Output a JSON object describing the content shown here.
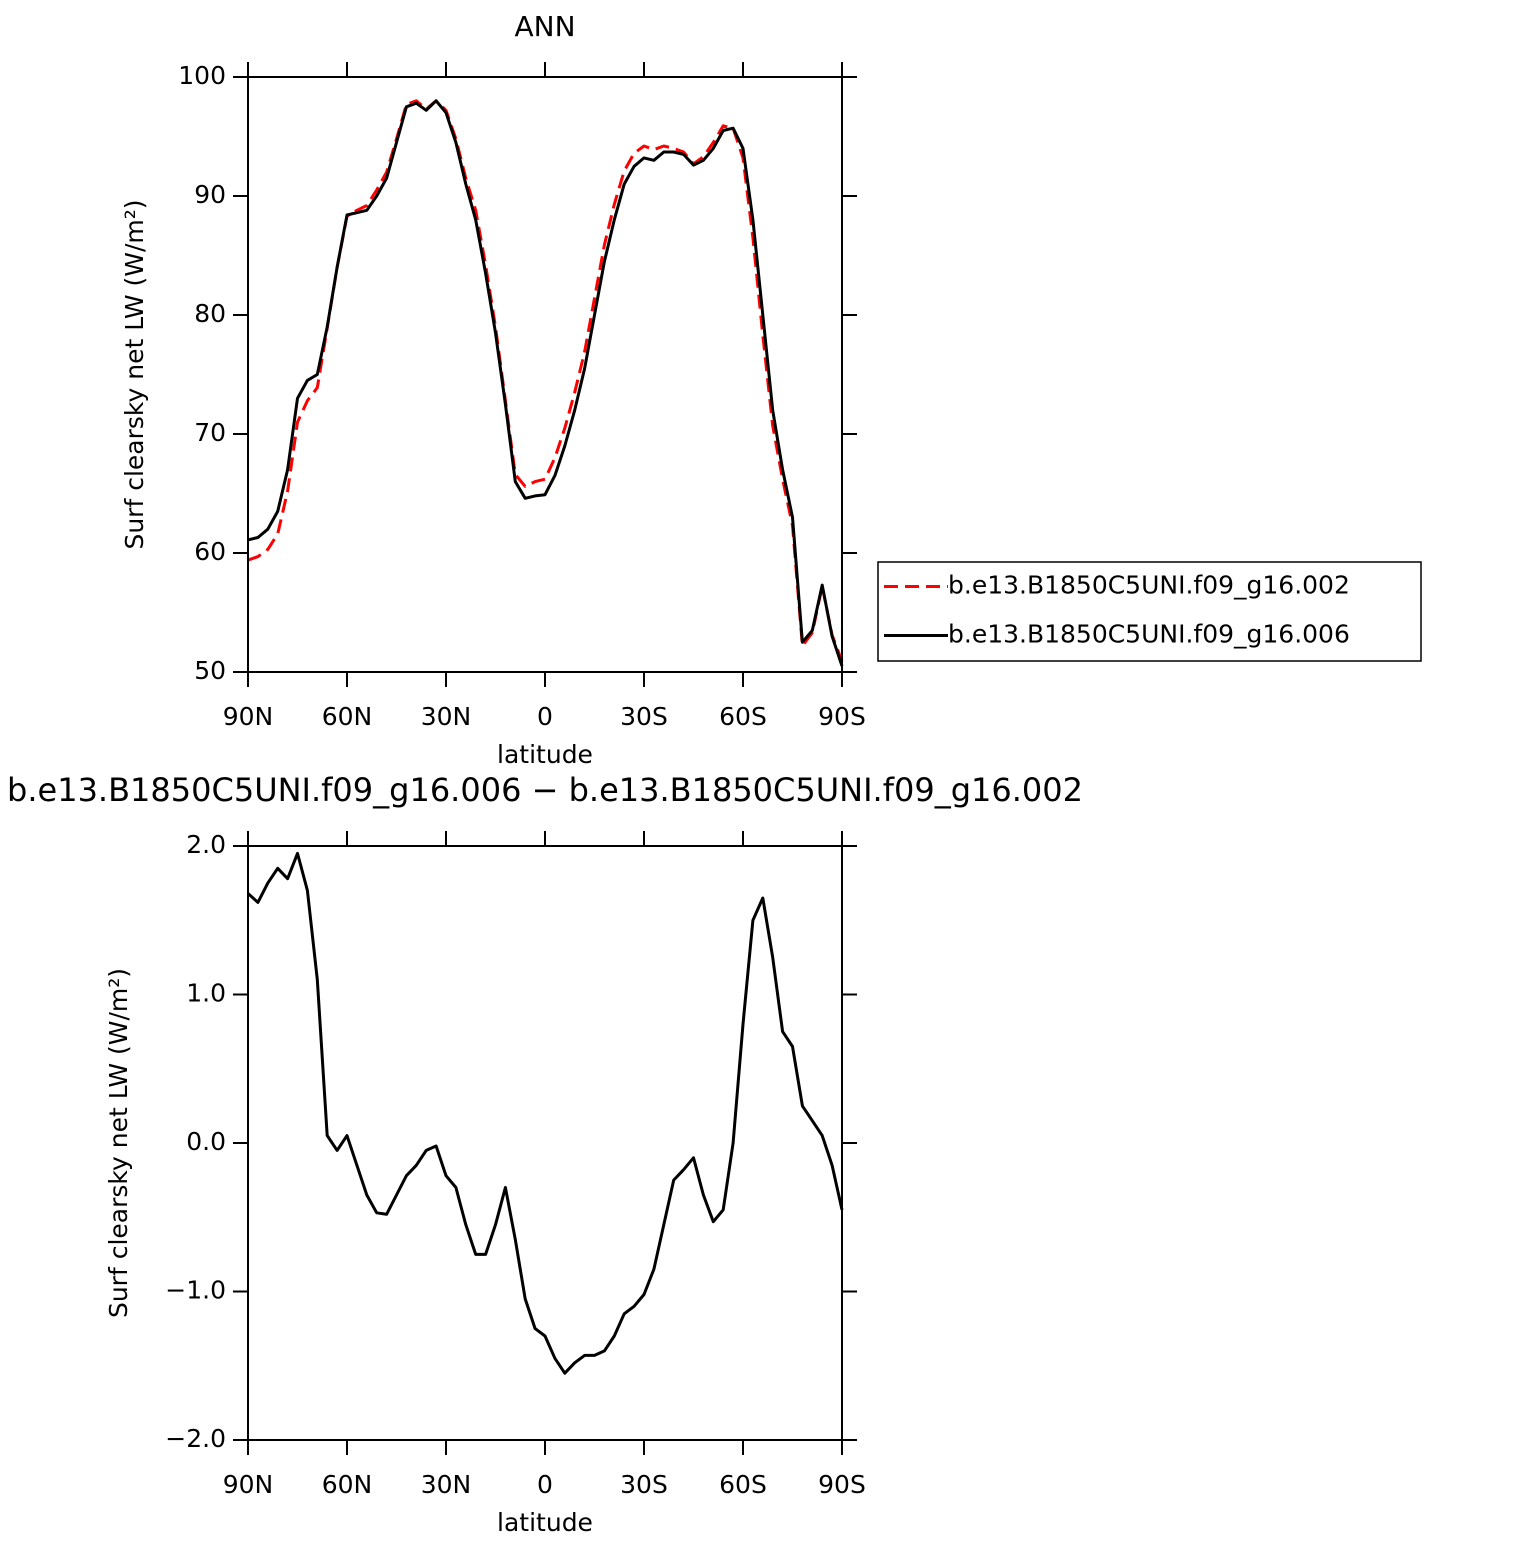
{
  "chart_data": [
    {
      "type": "line",
      "title": "ANN",
      "xlabel": "latitude",
      "ylabel": "Surf clearsky net LW (W/m²)",
      "x": [
        90,
        87,
        84,
        81,
        78,
        75,
        72,
        69,
        66,
        63,
        60,
        57,
        54,
        51,
        48,
        45,
        42,
        39,
        36,
        33,
        30,
        27,
        24,
        21,
        18,
        15,
        12,
        9,
        6,
        3,
        0,
        -3,
        -6,
        -9,
        -12,
        -15,
        -18,
        -21,
        -24,
        -27,
        -30,
        -33,
        -36,
        -39,
        -42,
        -45,
        -48,
        -51,
        -54,
        -57,
        -60,
        -63,
        -66,
        -69,
        -72,
        -75,
        -78,
        -81,
        -84,
        -87,
        -90
      ],
      "series": [
        {
          "name": "b.e13.B1850C5UNI.f09_g16.002",
          "color": "#ff0000",
          "dash": true,
          "values": [
            59.4,
            59.7,
            60.3,
            61.6,
            65.2,
            71,
            72.8,
            73.9,
            78.9,
            84,
            88.3,
            88.8,
            89.2,
            90.5,
            92,
            94.8,
            97.7,
            98,
            97.3,
            98,
            97.2,
            94.8,
            91.5,
            88.8,
            84.2,
            79,
            72.8,
            66.6,
            65.6,
            66,
            66.2,
            68,
            70.5,
            73.5,
            76.9,
            81.4,
            85.9,
            89.3,
            92.1,
            93.6,
            94.2,
            93.9,
            94.2,
            94,
            93.7,
            92.7,
            93.3,
            94.5,
            95.9,
            95.7,
            93.2,
            86.5,
            78.3,
            70.7,
            66.2,
            62.3,
            52.2,
            53.3,
            57.2,
            53.1,
            50.9
          ]
        },
        {
          "name": "b.e13.B1850C5UNI.f09_g16.006",
          "color": "#000000",
          "dash": false,
          "values": [
            61.1,
            61.3,
            62,
            63.5,
            67,
            73,
            74.5,
            75,
            79,
            84,
            88.4,
            88.6,
            88.8,
            90,
            91.5,
            94.5,
            97.5,
            97.8,
            97.2,
            98,
            97,
            94.5,
            91,
            88,
            83.5,
            78.5,
            72.5,
            66,
            64.6,
            64.8,
            64.9,
            66.5,
            69,
            72,
            75.5,
            80,
            84.5,
            88,
            91,
            92.5,
            93.2,
            93,
            93.7,
            93.7,
            93.5,
            92.6,
            93,
            94,
            95.5,
            95.7,
            94,
            88,
            80,
            72,
            67,
            63,
            52.5,
            53.5,
            57.3,
            53,
            50.5
          ]
        }
      ],
      "xlim": [
        90,
        -90
      ],
      "xticks": [
        {
          "value": 90,
          "label": "90N"
        },
        {
          "value": 60,
          "label": "60N"
        },
        {
          "value": 30,
          "label": "30N"
        },
        0,
        {
          "value": -30,
          "label": "30S"
        },
        {
          "value": -60,
          "label": "60S"
        },
        {
          "value": -90,
          "label": "90S"
        }
      ],
      "ylim": [
        50,
        100
      ],
      "yticks": [
        50,
        60,
        70,
        80,
        90,
        100
      ],
      "legend": "right"
    },
    {
      "type": "line",
      "title": "b.e13.B1850C5UNI.f09_g16.006 − b.e13.B1850C5UNI.f09_g16.002",
      "xlabel": "latitude",
      "ylabel": "Surf clearsky net LW (W/m²)",
      "x": [
        90,
        87,
        84,
        81,
        78,
        75,
        72,
        69,
        66,
        63,
        60,
        57,
        54,
        51,
        48,
        45,
        42,
        39,
        36,
        33,
        30,
        27,
        24,
        21,
        18,
        15,
        12,
        9,
        6,
        3,
        0,
        -3,
        -6,
        -9,
        -12,
        -15,
        -18,
        -21,
        -24,
        -27,
        -30,
        -33,
        -36,
        -39,
        -42,
        -45,
        -48,
        -51,
        -54,
        -57,
        -60,
        -63,
        -66,
        -69,
        -72,
        -75,
        -78,
        -81,
        -84,
        -87,
        -90
      ],
      "series": [
        {
          "color": "#000000",
          "dash": false,
          "values": [
            1.68,
            1.62,
            1.75,
            1.85,
            1.78,
            1.95,
            1.7,
            1.1,
            0.05,
            -0.05,
            0.05,
            -0.15,
            -0.35,
            -0.47,
            -0.48,
            -0.35,
            -0.22,
            -0.15,
            -0.05,
            -0.02,
            -0.22,
            -0.3,
            -0.55,
            -0.75,
            -0.75,
            -0.55,
            -0.3,
            -0.65,
            -1.05,
            -1.25,
            -1.3,
            -1.45,
            -1.55,
            -1.48,
            -1.43,
            -1.43,
            -1.4,
            -1.3,
            -1.15,
            -1.1,
            -1.02,
            -0.85,
            -0.55,
            -0.25,
            -0.18,
            -0.1,
            -0.35,
            -0.53,
            -0.45,
            0,
            0.8,
            1.5,
            1.65,
            1.25,
            0.75,
            0.65,
            0.25,
            0.15,
            0.05,
            -0.15,
            -0.45
          ]
        }
      ],
      "xlim": [
        90,
        -90
      ],
      "xticks": [
        {
          "value": 90,
          "label": "90N"
        },
        {
          "value": 60,
          "label": "60N"
        },
        {
          "value": 30,
          "label": "30N"
        },
        0,
        {
          "value": -30,
          "label": "30S"
        },
        {
          "value": -60,
          "label": "60S"
        },
        {
          "value": -90,
          "label": "90S"
        }
      ],
      "ylim": [
        -2,
        2
      ],
      "yticks": [
        {
          "value": -2,
          "label": "−2.0"
        },
        {
          "value": -1,
          "label": "−1.0"
        },
        {
          "value": 0,
          "label": "0.0"
        },
        {
          "value": 1,
          "label": "1.0"
        },
        {
          "value": 2,
          "label": "2.0"
        }
      ]
    }
  ]
}
